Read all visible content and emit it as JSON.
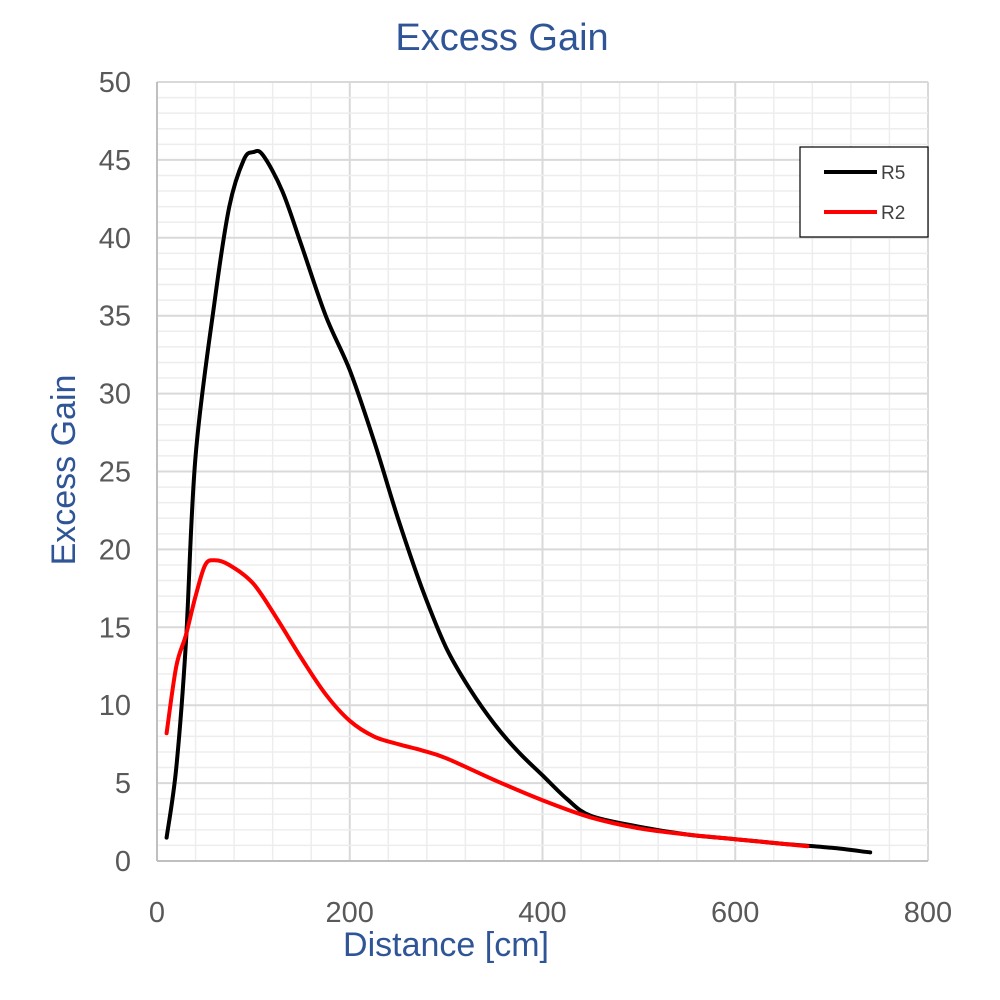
{
  "chart_data": {
    "type": "line",
    "title": "Excess Gain",
    "xlabel": "Distance [cm]",
    "ylabel": "Excess Gain",
    "xlim": [
      0,
      800
    ],
    "ylim": [
      0,
      50
    ],
    "x_ticks": [
      "0",
      "200",
      "400",
      "600",
      "800"
    ],
    "y_ticks": [
      "0",
      "5",
      "10",
      "15",
      "20",
      "25",
      "30",
      "35",
      "40",
      "45",
      "50"
    ],
    "grid": true,
    "legend_position": "top-right",
    "series": [
      {
        "name": "R5",
        "color": "#000000",
        "points": [
          [
            10,
            1.5
          ],
          [
            20,
            6
          ],
          [
            30,
            14
          ],
          [
            40,
            26
          ],
          [
            60,
            36
          ],
          [
            75,
            42
          ],
          [
            90,
            45
          ],
          [
            100,
            45.5
          ],
          [
            110,
            45.3
          ],
          [
            130,
            43
          ],
          [
            150,
            39.5
          ],
          [
            175,
            35
          ],
          [
            200,
            31.5
          ],
          [
            225,
            27
          ],
          [
            250,
            22
          ],
          [
            275,
            17.5
          ],
          [
            300,
            13.7
          ],
          [
            325,
            11
          ],
          [
            350,
            8.8
          ],
          [
            375,
            7
          ],
          [
            400,
            5.5
          ],
          [
            425,
            4
          ],
          [
            450,
            2.9
          ],
          [
            500,
            2.2
          ],
          [
            550,
            1.7
          ],
          [
            600,
            1.4
          ],
          [
            650,
            1.1
          ],
          [
            700,
            0.85
          ],
          [
            740,
            0.55
          ]
        ]
      },
      {
        "name": "R2",
        "color": "#FF0000",
        "points": [
          [
            10,
            8.2
          ],
          [
            20,
            12.5
          ],
          [
            30,
            14.5
          ],
          [
            40,
            17
          ],
          [
            50,
            19
          ],
          [
            60,
            19.3
          ],
          [
            75,
            19
          ],
          [
            100,
            17.8
          ],
          [
            125,
            15.5
          ],
          [
            150,
            13
          ],
          [
            175,
            10.7
          ],
          [
            200,
            9
          ],
          [
            225,
            8
          ],
          [
            250,
            7.5
          ],
          [
            275,
            7.1
          ],
          [
            300,
            6.6
          ],
          [
            350,
            5.2
          ],
          [
            400,
            3.9
          ],
          [
            450,
            2.8
          ],
          [
            500,
            2.1
          ],
          [
            550,
            1.7
          ],
          [
            600,
            1.4
          ],
          [
            650,
            1.1
          ],
          [
            675,
            0.95
          ]
        ]
      }
    ]
  }
}
